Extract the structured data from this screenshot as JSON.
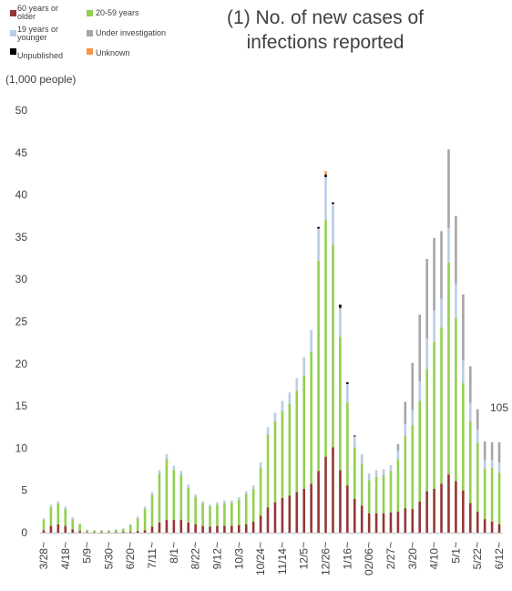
{
  "title_lines": [
    "(1) No. of new cases of",
    "infections reported"
  ],
  "unit_label": "(1,000 people)",
  "annotation": "105",
  "legend": [
    {
      "label_lines": [
        "60 years or",
        "older"
      ],
      "color": "#953735"
    },
    {
      "label_lines": [
        "20-59 years"
      ],
      "color": "#92D050"
    },
    {
      "label_lines": [
        "19 years or",
        "younger"
      ],
      "color": "#B9CDE5"
    },
    {
      "label_lines": [
        "Under investigation"
      ],
      "color": "#A6A6A6"
    },
    {
      "label_lines": [
        "Unpublished"
      ],
      "color": "#000000"
    },
    {
      "label_lines": [
        "Unknown"
      ],
      "color": "#F79646"
    }
  ],
  "chart_data": {
    "type": "bar",
    "stacked": true,
    "ylim": [
      0,
      50
    ],
    "yticks": [
      0,
      5,
      10,
      15,
      20,
      25,
      30,
      35,
      40,
      45,
      50
    ],
    "grid": false,
    "x_tick_labels": [
      "3/28~",
      "4/18~",
      "5/9~",
      "5/30~",
      "6/20~",
      "7/11~",
      "8/1~",
      "8/22~",
      "9/12~",
      "10/3~",
      "10/24~",
      "11/14~",
      "12/5~",
      "12/26~",
      "1/16~",
      "02/06~",
      "2/27~",
      "3/20~",
      "4/10~",
      "5/1~",
      "5/22~",
      "6/12~"
    ],
    "series_keys": [
      "60+",
      "20-59",
      "19-",
      "inv",
      "unpub",
      "unk"
    ],
    "bars": [
      [
        0.3,
        1.2,
        0.2,
        0,
        0,
        0
      ],
      [
        0.8,
        2.2,
        0.3,
        0,
        0,
        0
      ],
      [
        1.0,
        2.4,
        0.3,
        0,
        0,
        0
      ],
      [
        0.8,
        2.0,
        0.3,
        0,
        0,
        0
      ],
      [
        0.4,
        1.2,
        0.2,
        0,
        0,
        0
      ],
      [
        0.2,
        0.8,
        0.1,
        0,
        0,
        0
      ],
      [
        0.05,
        0.25,
        0.05,
        0,
        0,
        0
      ],
      [
        0.05,
        0.2,
        0.05,
        0,
        0,
        0
      ],
      [
        0.05,
        0.2,
        0.05,
        0,
        0,
        0
      ],
      [
        0.05,
        0.2,
        0.05,
        0,
        0,
        0
      ],
      [
        0.05,
        0.3,
        0.05,
        0,
        0,
        0
      ],
      [
        0.1,
        0.35,
        0.05,
        0,
        0,
        0
      ],
      [
        0.1,
        0.8,
        0.1,
        0,
        0,
        0
      ],
      [
        0.2,
        1.5,
        0.2,
        0,
        0,
        0
      ],
      [
        0.3,
        2.5,
        0.3,
        0,
        0,
        0
      ],
      [
        0.7,
        3.8,
        0.3,
        0,
        0,
        0
      ],
      [
        1.2,
        5.8,
        0.4,
        0,
        0,
        0
      ],
      [
        1.5,
        7.2,
        0.6,
        0,
        0,
        0
      ],
      [
        1.5,
        5.9,
        0.5,
        0,
        0,
        0
      ],
      [
        1.5,
        5.3,
        0.5,
        0,
        0,
        0
      ],
      [
        1.2,
        4.1,
        0.4,
        0,
        0,
        0
      ],
      [
        1.0,
        3.2,
        0.3,
        0,
        0,
        0
      ],
      [
        0.8,
        2.7,
        0.2,
        0,
        0,
        0
      ],
      [
        0.7,
        2.4,
        0.2,
        0,
        0,
        0
      ],
      [
        0.8,
        2.5,
        0.3,
        0,
        0,
        0
      ],
      [
        0.8,
        2.7,
        0.3,
        0,
        0,
        0
      ],
      [
        0.8,
        2.7,
        0.3,
        0,
        0,
        0
      ],
      [
        0.9,
        3.0,
        0.3,
        0,
        0,
        0
      ],
      [
        1.0,
        3.6,
        0.3,
        0,
        0,
        0
      ],
      [
        1.3,
        3.9,
        0.4,
        0,
        0,
        0
      ],
      [
        2.0,
        5.7,
        0.6,
        0,
        0,
        0
      ],
      [
        3.0,
        8.6,
        0.9,
        0,
        0,
        0
      ],
      [
        3.6,
        9.6,
        1.0,
        0,
        0,
        0
      ],
      [
        4.1,
        10.3,
        1.2,
        0,
        0,
        0
      ],
      [
        4.4,
        10.9,
        1.3,
        0,
        0,
        0
      ],
      [
        4.8,
        12.0,
        1.5,
        0,
        0,
        0
      ],
      [
        5.2,
        13.4,
        2.2,
        0,
        0,
        0
      ],
      [
        5.8,
        15.6,
        2.6,
        0,
        0,
        0
      ],
      [
        7.3,
        24.9,
        3.8,
        0,
        0.2,
        0
      ],
      [
        9.0,
        28.0,
        5.1,
        0,
        0.3,
        0.4
      ],
      [
        10.1,
        24.0,
        4.8,
        0,
        0.2,
        0
      ],
      [
        7.4,
        15.8,
        3.4,
        0,
        0.4,
        0
      ],
      [
        5.6,
        9.8,
        2.2,
        0,
        0.2,
        0
      ],
      [
        4.0,
        6.1,
        1.3,
        0,
        0.1,
        0
      ],
      [
        3.2,
        5.0,
        1.1,
        0,
        0,
        0
      ],
      [
        2.3,
        3.9,
        0.8,
        0,
        0,
        0
      ],
      [
        2.3,
        4.3,
        0.8,
        0,
        0,
        0
      ],
      [
        2.3,
        4.5,
        0.7,
        0,
        0,
        0
      ],
      [
        2.4,
        4.9,
        0.7,
        0,
        0,
        0
      ],
      [
        2.5,
        6.2,
        1.0,
        0.8,
        0,
        0
      ],
      [
        2.9,
        8.5,
        1.5,
        2.6,
        0,
        0
      ],
      [
        2.8,
        9.9,
        1.8,
        5.6,
        0,
        0
      ],
      [
        3.7,
        11.9,
        2.3,
        7.9,
        0,
        0
      ],
      [
        4.9,
        14.5,
        3.6,
        9.4,
        0,
        0
      ],
      [
        5.2,
        17.4,
        3.7,
        8.6,
        0,
        0
      ],
      [
        5.8,
        18.5,
        3.4,
        8.0,
        0,
        0
      ],
      [
        6.9,
        25.1,
        4.1,
        9.3,
        0,
        0
      ],
      [
        6.1,
        19.3,
        4.1,
        8.0,
        0,
        0
      ],
      [
        5.0,
        12.7,
        2.7,
        7.8,
        0,
        0
      ],
      [
        3.5,
        9.7,
        2.2,
        4.3,
        0,
        0
      ],
      [
        2.5,
        8.1,
        1.6,
        2.4,
        0,
        0
      ],
      [
        1.6,
        6.0,
        1.0,
        2.2,
        0,
        0
      ],
      [
        1.3,
        6.4,
        0.9,
        2.1,
        0,
        0
      ],
      [
        1.0,
        6.1,
        1.2,
        2.4,
        0,
        0
      ]
    ]
  }
}
